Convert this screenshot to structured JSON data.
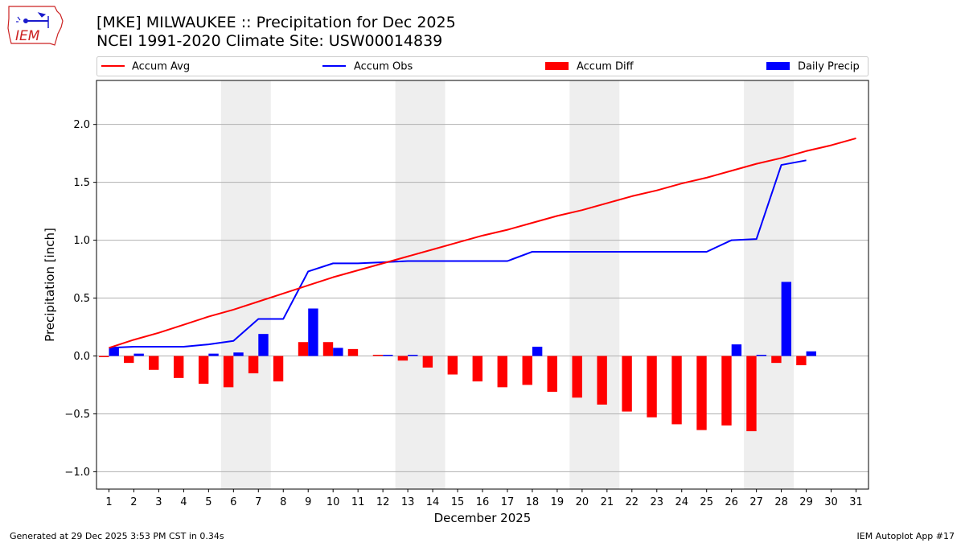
{
  "logo": {
    "text": "IEM"
  },
  "header": {
    "title": "[MKE] MILWAUKEE :: Precipitation for Dec 2025",
    "subtitle": "NCEI 1991-2020 Climate Site: USW00014839"
  },
  "footer": {
    "left": "Generated at 29 Dec 2025 3:53 PM CST in 0.34s",
    "right": "IEM Autoplot App #17"
  },
  "colors": {
    "avg": "#ff0000",
    "obs": "#0000ff",
    "diff": "#ff0000",
    "daily": "#0000ff",
    "weekend": "#eeeeee",
    "grid": "#b0b0b0"
  },
  "chart_data": {
    "type": "bar",
    "title": "[MKE] MILWAUKEE :: Precipitation for Dec 2025",
    "subtitle": "NCEI 1991-2020 Climate Site: USW00014839",
    "xlabel": "December 2025",
    "ylabel": "Precipitation [inch]",
    "xlim": [
      0.5,
      31.5
    ],
    "ylim": [
      -1.15,
      2.38
    ],
    "yticks": [
      -1.0,
      -0.5,
      0.0,
      0.5,
      1.0,
      1.5,
      2.0
    ],
    "ytick_labels": [
      "−1.0",
      "−0.5",
      "0.0",
      "0.5",
      "1.0",
      "1.5",
      "2.0"
    ],
    "xticks": [
      1,
      2,
      3,
      4,
      5,
      6,
      7,
      8,
      9,
      10,
      11,
      12,
      13,
      14,
      15,
      16,
      17,
      18,
      19,
      20,
      21,
      22,
      23,
      24,
      25,
      26,
      27,
      28,
      29,
      30,
      31
    ],
    "grid": "horizontal",
    "legend_position": "top",
    "weekend_spans": [
      [
        5.5,
        7.5
      ],
      [
        12.5,
        14.5
      ],
      [
        19.5,
        21.5
      ],
      [
        26.5,
        28.5
      ]
    ],
    "series": [
      {
        "name": "Accum Avg",
        "kind": "line",
        "x": [
          1,
          2,
          3,
          4,
          5,
          6,
          7,
          8,
          9,
          10,
          11,
          12,
          13,
          14,
          15,
          16,
          17,
          18,
          19,
          20,
          21,
          22,
          23,
          24,
          25,
          26,
          27,
          28,
          29,
          30,
          31
        ],
        "values": [
          0.07,
          0.14,
          0.2,
          0.27,
          0.34,
          0.4,
          0.47,
          0.54,
          0.61,
          0.68,
          0.74,
          0.8,
          0.86,
          0.92,
          0.98,
          1.04,
          1.09,
          1.15,
          1.21,
          1.26,
          1.32,
          1.38,
          1.43,
          1.49,
          1.54,
          1.6,
          1.66,
          1.71,
          1.77,
          1.82,
          1.88
        ]
      },
      {
        "name": "Accum Obs",
        "kind": "line",
        "x": [
          1,
          2,
          3,
          4,
          5,
          6,
          7,
          8,
          9,
          10,
          11,
          12,
          13,
          14,
          15,
          16,
          17,
          18,
          19,
          20,
          21,
          22,
          23,
          24,
          25,
          26,
          27,
          28,
          29
        ],
        "values": [
          0.07,
          0.08,
          0.08,
          0.08,
          0.1,
          0.13,
          0.32,
          0.32,
          0.73,
          0.8,
          0.8,
          0.81,
          0.82,
          0.82,
          0.82,
          0.82,
          0.82,
          0.9,
          0.9,
          0.9,
          0.9,
          0.9,
          0.9,
          0.9,
          0.9,
          1.0,
          1.01,
          1.65,
          1.69
        ]
      },
      {
        "name": "Accum Diff",
        "kind": "bar",
        "x": [
          1,
          2,
          3,
          4,
          5,
          6,
          7,
          8,
          9,
          10,
          11,
          12,
          13,
          14,
          15,
          16,
          17,
          18,
          19,
          20,
          21,
          22,
          23,
          24,
          25,
          26,
          27,
          28,
          29
        ],
        "values": [
          -0.01,
          -0.06,
          -0.12,
          -0.19,
          -0.24,
          -0.27,
          -0.15,
          -0.22,
          0.12,
          0.12,
          0.06,
          0.01,
          -0.04,
          -0.1,
          -0.16,
          -0.22,
          -0.27,
          -0.25,
          -0.31,
          -0.36,
          -0.42,
          -0.48,
          -0.53,
          -0.59,
          -0.64,
          -0.6,
          -0.65,
          -0.06,
          -0.08
        ]
      },
      {
        "name": "Daily Precip",
        "kind": "bar",
        "x": [
          1,
          2,
          3,
          4,
          5,
          6,
          7,
          8,
          9,
          10,
          11,
          12,
          13,
          14,
          15,
          16,
          17,
          18,
          19,
          20,
          21,
          22,
          23,
          24,
          25,
          26,
          27,
          28,
          29
        ],
        "values": [
          0.07,
          0.02,
          0.0,
          0.0,
          0.02,
          0.03,
          0.19,
          0.0,
          0.41,
          0.07,
          0.0,
          0.01,
          0.01,
          0.0,
          0.0,
          0.0,
          0.0,
          0.08,
          0.0,
          0.0,
          0.0,
          0.0,
          0.0,
          0.0,
          0.0,
          0.1,
          0.01,
          0.64,
          0.04
        ]
      }
    ]
  }
}
